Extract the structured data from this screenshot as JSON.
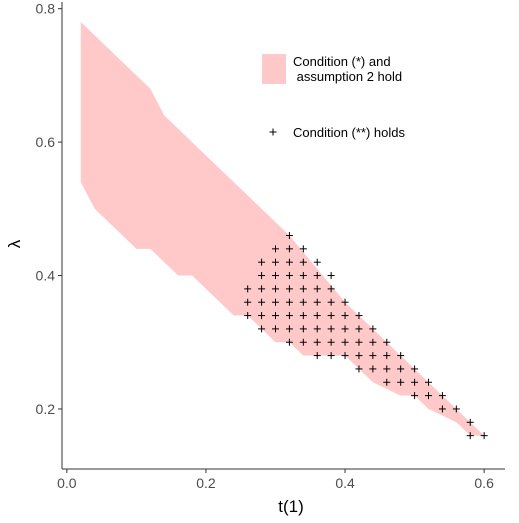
{
  "chart_data": {
    "type": "area",
    "xlabel": "t(1)",
    "ylabel": "λ",
    "xlim": [
      -0.007,
      0.63
    ],
    "ylim": [
      0.11,
      0.81
    ],
    "x_ticks": [
      0.0,
      0.2,
      0.4,
      0.6
    ],
    "x_tick_labels": [
      "0.0",
      "0.2",
      "0.4",
      "0.6"
    ],
    "y_ticks": [
      0.2,
      0.4,
      0.6,
      0.8
    ],
    "y_tick_labels": [
      "0.2",
      "0.4",
      "0.6",
      "0.8"
    ],
    "grid": false,
    "legend_position": "top-right",
    "colors": {
      "region": "#ffc9c9",
      "points": "#000000",
      "axis": "#333333",
      "tick_label": "#4d4d4d"
    },
    "series": [
      {
        "name": "Condition (*) and\n assumption 2 hold",
        "type": "area",
        "upper": [
          [
            0.02,
            0.78
          ],
          [
            0.12,
            0.68
          ],
          [
            0.14,
            0.64
          ],
          [
            0.32,
            0.46
          ],
          [
            0.4,
            0.36
          ],
          [
            0.6,
            0.16
          ]
        ],
        "lower": [
          [
            0.02,
            0.54
          ],
          [
            0.04,
            0.5
          ],
          [
            0.1,
            0.44
          ],
          [
            0.12,
            0.44
          ],
          [
            0.16,
            0.4
          ],
          [
            0.18,
            0.4
          ],
          [
            0.24,
            0.34
          ],
          [
            0.26,
            0.34
          ],
          [
            0.28,
            0.32
          ],
          [
            0.3,
            0.3
          ],
          [
            0.32,
            0.3
          ],
          [
            0.34,
            0.28
          ],
          [
            0.4,
            0.28
          ],
          [
            0.44,
            0.24
          ],
          [
            0.48,
            0.22
          ],
          [
            0.5,
            0.22
          ],
          [
            0.52,
            0.2
          ],
          [
            0.56,
            0.18
          ],
          [
            0.58,
            0.16
          ],
          [
            0.6,
            0.16
          ]
        ]
      },
      {
        "name": "Condition (**) holds",
        "type": "scatter",
        "marker": "+",
        "columns": [
          {
            "x": 0.26,
            "y_min": 0.34,
            "y_max": 0.38
          },
          {
            "x": 0.28,
            "y_min": 0.32,
            "y_max": 0.42
          },
          {
            "x": 0.3,
            "y_min": 0.32,
            "y_max": 0.44
          },
          {
            "x": 0.32,
            "y_min": 0.3,
            "y_max": 0.46
          },
          {
            "x": 0.34,
            "y_min": 0.3,
            "y_max": 0.44
          },
          {
            "x": 0.36,
            "y_min": 0.28,
            "y_max": 0.42
          },
          {
            "x": 0.38,
            "y_min": 0.28,
            "y_max": 0.4
          },
          {
            "x": 0.4,
            "y_min": 0.28,
            "y_max": 0.36
          },
          {
            "x": 0.42,
            "y_min": 0.26,
            "y_max": 0.34
          },
          {
            "x": 0.44,
            "y_min": 0.26,
            "y_max": 0.32
          },
          {
            "x": 0.46,
            "y_min": 0.24,
            "y_max": 0.3
          },
          {
            "x": 0.48,
            "y_min": 0.24,
            "y_max": 0.28
          },
          {
            "x": 0.5,
            "y_min": 0.22,
            "y_max": 0.26
          },
          {
            "x": 0.52,
            "y_min": 0.22,
            "y_max": 0.24
          },
          {
            "x": 0.54,
            "y_min": 0.2,
            "y_max": 0.22
          },
          {
            "x": 0.56,
            "y_min": 0.2,
            "y_max": 0.2
          },
          {
            "x": 0.58,
            "y_min": 0.16,
            "y_max": 0.18
          },
          {
            "x": 0.6,
            "y_min": 0.16,
            "y_max": 0.16
          }
        ]
      }
    ]
  }
}
